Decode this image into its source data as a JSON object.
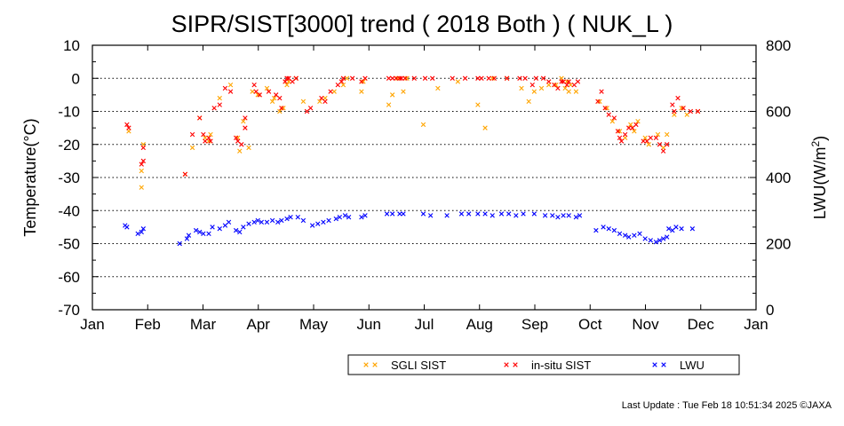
{
  "chart_data": {
    "type": "scatter",
    "title": "SIPR/SIST[3000] trend ( 2018 Both ) ( NUK_L )",
    "xlabel": "",
    "ylabel": "Temperature(°C)",
    "y2label": "LWU(W/m²)",
    "y2label_main": "LWU(W/m",
    "y2label_sup": "2",
    "y2label_close": ")",
    "categories": [
      "Jan",
      "Feb",
      "Mar",
      "Apr",
      "May",
      "Jun",
      "Jul",
      "Aug",
      "Sep",
      "Oct",
      "Nov",
      "Dec",
      "Jan"
    ],
    "xlim": [
      0,
      365
    ],
    "ylim": [
      -70,
      10
    ],
    "y2lim": [
      0,
      800
    ],
    "yticks": [
      10,
      0,
      -10,
      -20,
      -30,
      -40,
      -50,
      -60,
      -70
    ],
    "y2ticks": [
      800,
      600,
      400,
      200,
      0
    ],
    "grid": "dotted horizontal",
    "legend_position": "bottom",
    "colors": {
      "sgli": "#ffa500",
      "insitu": "#ff0000",
      "lwu": "#0000ff"
    },
    "series": [
      {
        "name": "SGLI SIST",
        "axis": "left",
        "points": [
          [
            20,
            -16
          ],
          [
            27,
            -28
          ],
          [
            27,
            -33
          ],
          [
            28,
            -20
          ],
          [
            51,
            -29
          ],
          [
            55,
            -21
          ],
          [
            59,
            -12
          ],
          [
            62,
            -18
          ],
          [
            64,
            -19
          ],
          [
            65,
            -17
          ],
          [
            70,
            -6
          ],
          [
            76,
            -2
          ],
          [
            80,
            -18
          ],
          [
            81,
            -22
          ],
          [
            83,
            -13
          ],
          [
            86,
            -21
          ],
          [
            88,
            -4
          ],
          [
            91,
            -5
          ],
          [
            96,
            -3
          ],
          [
            99,
            -7
          ],
          [
            100,
            -6
          ],
          [
            103,
            -10
          ],
          [
            105,
            -9
          ],
          [
            107,
            -2
          ],
          [
            108,
            -1
          ],
          [
            112,
            0
          ],
          [
            116,
            -7
          ],
          [
            125,
            -7
          ],
          [
            128,
            -6
          ],
          [
            133,
            -4
          ],
          [
            138,
            -2
          ],
          [
            140,
            0
          ],
          [
            148,
            -4
          ],
          [
            149,
            -1
          ],
          [
            163,
            -8
          ],
          [
            165,
            -5
          ],
          [
            168,
            0
          ],
          [
            171,
            -4
          ],
          [
            173,
            0
          ],
          [
            182,
            -14
          ],
          [
            190,
            -3
          ],
          [
            201,
            -1
          ],
          [
            212,
            -8
          ],
          [
            216,
            -15
          ],
          [
            220,
            0
          ],
          [
            228,
            0
          ],
          [
            236,
            -3
          ],
          [
            240,
            -7
          ],
          [
            243,
            -4
          ],
          [
            247,
            -3
          ],
          [
            251,
            -2
          ],
          [
            255,
            -2
          ],
          [
            258,
            0
          ],
          [
            260,
            -3
          ],
          [
            261,
            -1
          ],
          [
            262,
            -4
          ],
          [
            263,
            -2
          ],
          [
            266,
            -4
          ],
          [
            279,
            -7
          ],
          [
            283,
            -9
          ],
          [
            286,
            -13
          ],
          [
            290,
            -16
          ],
          [
            293,
            -18
          ],
          [
            296,
            -14
          ],
          [
            298,
            -16
          ],
          [
            300,
            -13
          ],
          [
            304,
            -18
          ],
          [
            306,
            -20
          ],
          [
            311,
            -17
          ],
          [
            314,
            -21
          ],
          [
            316,
            -17
          ],
          [
            320,
            -11
          ],
          [
            324,
            -9
          ],
          [
            327,
            -11
          ],
          [
            333,
            -10
          ]
        ]
      },
      {
        "name": "in-situ SIST",
        "axis": "left",
        "points": [
          [
            19,
            -14
          ],
          [
            20,
            -15
          ],
          [
            27,
            -26
          ],
          [
            28,
            -25
          ],
          [
            28,
            -21
          ],
          [
            51,
            -29
          ],
          [
            55,
            -17
          ],
          [
            59,
            -12
          ],
          [
            61,
            -17
          ],
          [
            62,
            -19
          ],
          [
            64,
            -18
          ],
          [
            65,
            -19
          ],
          [
            67,
            -9
          ],
          [
            70,
            -8
          ],
          [
            73,
            -3
          ],
          [
            76,
            -4
          ],
          [
            79,
            -18
          ],
          [
            80,
            -19
          ],
          [
            82,
            -20
          ],
          [
            84,
            -12
          ],
          [
            84,
            -15
          ],
          [
            89,
            -2
          ],
          [
            90,
            -4
          ],
          [
            92,
            -5
          ],
          [
            97,
            -4
          ],
          [
            101,
            -5
          ],
          [
            103,
            -6
          ],
          [
            104,
            -9
          ],
          [
            106,
            -1
          ],
          [
            107,
            0
          ],
          [
            108,
            0
          ],
          [
            110,
            -1
          ],
          [
            112,
            0
          ],
          [
            118,
            -10
          ],
          [
            120,
            -9
          ],
          [
            126,
            -6
          ],
          [
            128,
            -7
          ],
          [
            131,
            -4
          ],
          [
            135,
            -2
          ],
          [
            137,
            -1
          ],
          [
            138,
            0
          ],
          [
            143,
            0
          ],
          [
            148,
            -1
          ],
          [
            150,
            0
          ],
          [
            163,
            0
          ],
          [
            165,
            0
          ],
          [
            167,
            0
          ],
          [
            169,
            0
          ],
          [
            170,
            0
          ],
          [
            172,
            0
          ],
          [
            177,
            0
          ],
          [
            183,
            0
          ],
          [
            187,
            0
          ],
          [
            198,
            0
          ],
          [
            205,
            0
          ],
          [
            212,
            0
          ],
          [
            214,
            0
          ],
          [
            218,
            0
          ],
          [
            221,
            0
          ],
          [
            228,
            0
          ],
          [
            235,
            0
          ],
          [
            238,
            0
          ],
          [
            242,
            -2
          ],
          [
            244,
            0
          ],
          [
            248,
            0
          ],
          [
            251,
            -1
          ],
          [
            254,
            -2
          ],
          [
            256,
            -3
          ],
          [
            258,
            -1
          ],
          [
            259,
            -1
          ],
          [
            261,
            -2
          ],
          [
            262,
            -1
          ],
          [
            265,
            -2
          ],
          [
            267,
            -1
          ],
          [
            278,
            -7
          ],
          [
            280,
            -4
          ],
          [
            282,
            -9
          ],
          [
            284,
            -11
          ],
          [
            287,
            -12
          ],
          [
            289,
            -16
          ],
          [
            290,
            -18
          ],
          [
            291,
            -19
          ],
          [
            293,
            -17
          ],
          [
            295,
            -15
          ],
          [
            297,
            -15
          ],
          [
            299,
            -14
          ],
          [
            303,
            -19
          ],
          [
            305,
            -19
          ],
          [
            307,
            -18
          ],
          [
            310,
            -18
          ],
          [
            312,
            -20
          ],
          [
            314,
            -22
          ],
          [
            316,
            -20
          ],
          [
            319,
            -8
          ],
          [
            320,
            -10
          ],
          [
            322,
            -6
          ],
          [
            325,
            -9
          ],
          [
            329,
            -10
          ],
          [
            333,
            -10
          ]
        ]
      },
      {
        "name": "LWU",
        "axis": "right",
        "points": [
          [
            18,
            255
          ],
          [
            19,
            250
          ],
          [
            25,
            230
          ],
          [
            27,
            235
          ],
          [
            28,
            245
          ],
          [
            48,
            200
          ],
          [
            52,
            215
          ],
          [
            53,
            225
          ],
          [
            57,
            240
          ],
          [
            59,
            235
          ],
          [
            61,
            230
          ],
          [
            64,
            230
          ],
          [
            66,
            250
          ],
          [
            70,
            245
          ],
          [
            73,
            255
          ],
          [
            75,
            265
          ],
          [
            79,
            240
          ],
          [
            81,
            235
          ],
          [
            83,
            250
          ],
          [
            86,
            260
          ],
          [
            89,
            265
          ],
          [
            91,
            270
          ],
          [
            93,
            265
          ],
          [
            96,
            265
          ],
          [
            99,
            270
          ],
          [
            102,
            265
          ],
          [
            104,
            270
          ],
          [
            107,
            275
          ],
          [
            109,
            280
          ],
          [
            113,
            280
          ],
          [
            116,
            270
          ],
          [
            121,
            255
          ],
          [
            124,
            260
          ],
          [
            127,
            265
          ],
          [
            130,
            270
          ],
          [
            134,
            275
          ],
          [
            136,
            280
          ],
          [
            139,
            285
          ],
          [
            141,
            280
          ],
          [
            148,
            280
          ],
          [
            150,
            285
          ],
          [
            162,
            290
          ],
          [
            165,
            290
          ],
          [
            169,
            290
          ],
          [
            171,
            290
          ],
          [
            182,
            290
          ],
          [
            186,
            285
          ],
          [
            195,
            285
          ],
          [
            203,
            290
          ],
          [
            207,
            290
          ],
          [
            212,
            290
          ],
          [
            216,
            290
          ],
          [
            220,
            285
          ],
          [
            225,
            290
          ],
          [
            229,
            290
          ],
          [
            233,
            285
          ],
          [
            237,
            290
          ],
          [
            243,
            290
          ],
          [
            249,
            285
          ],
          [
            253,
            285
          ],
          [
            256,
            280
          ],
          [
            259,
            285
          ],
          [
            262,
            285
          ],
          [
            266,
            280
          ],
          [
            268,
            285
          ],
          [
            277,
            240
          ],
          [
            281,
            250
          ],
          [
            284,
            245
          ],
          [
            287,
            240
          ],
          [
            290,
            230
          ],
          [
            293,
            225
          ],
          [
            295,
            220
          ],
          [
            298,
            225
          ],
          [
            301,
            230
          ],
          [
            304,
            215
          ],
          [
            307,
            210
          ],
          [
            310,
            205
          ],
          [
            312,
            210
          ],
          [
            314,
            215
          ],
          [
            316,
            220
          ],
          [
            317,
            245
          ],
          [
            319,
            240
          ],
          [
            321,
            250
          ],
          [
            324,
            245
          ],
          [
            330,
            245
          ]
        ]
      }
    ]
  },
  "footer": {
    "last_update": "Last Update : Tue Feb 18 10:51:34 2025  ©JAXA"
  }
}
